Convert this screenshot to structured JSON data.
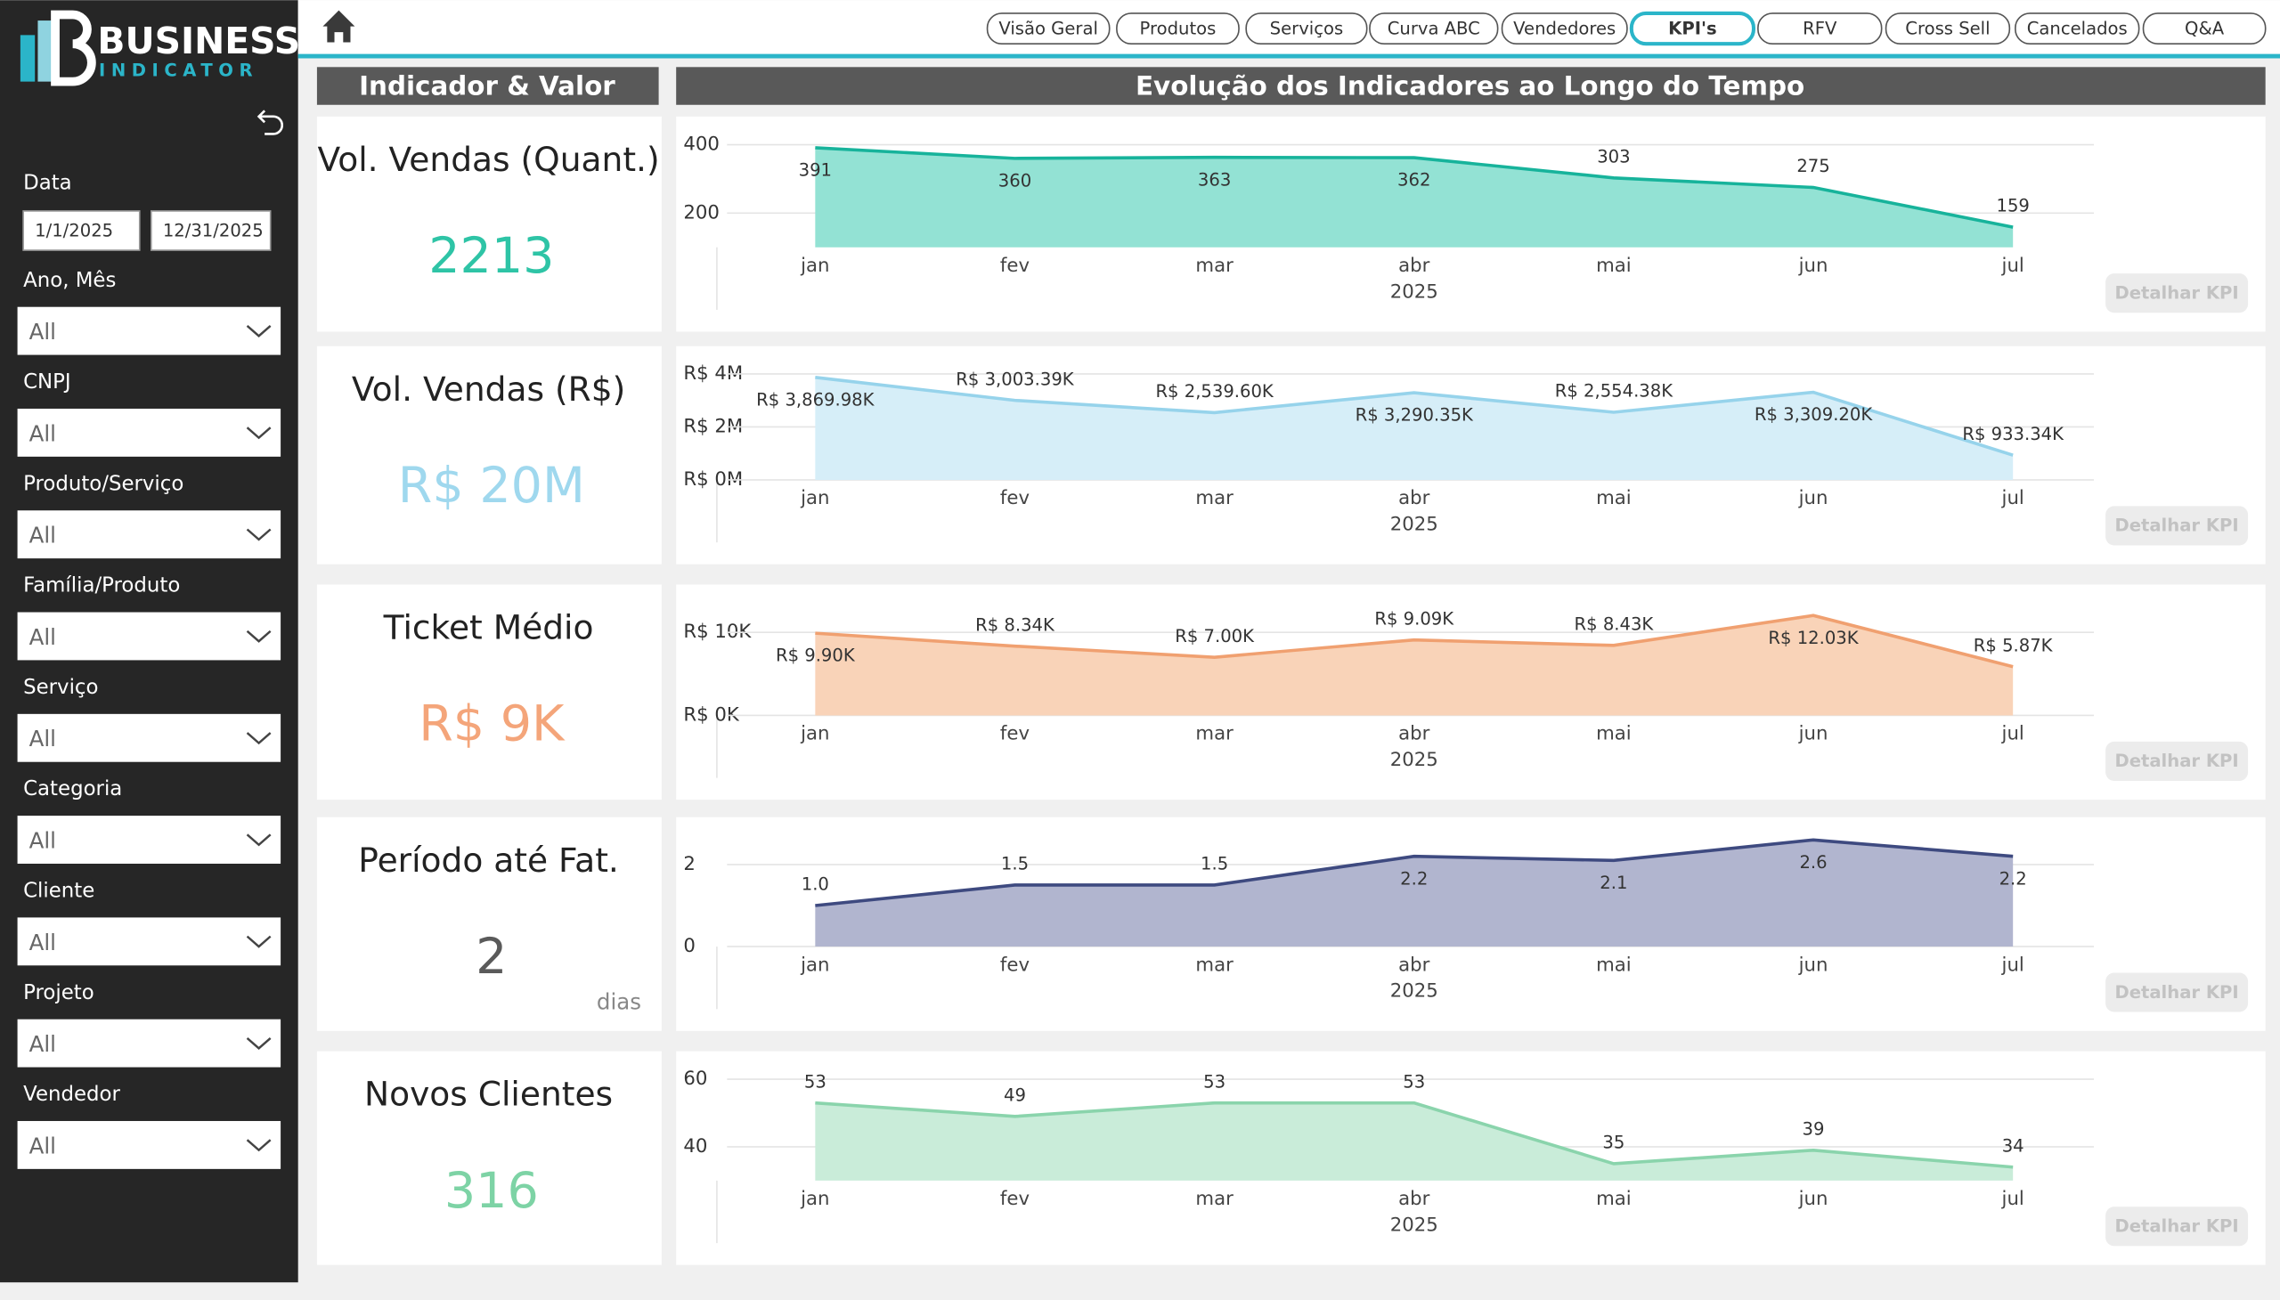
{
  "brand": {
    "name": "BUSINESS",
    "tagline": "INDICATOR"
  },
  "nav": {
    "items": [
      "Visão Geral",
      "Produtos",
      "Serviços",
      "Curva ABC",
      "Vendedores",
      "KPI's",
      "RFV",
      "Cross Sell",
      "Cancelados",
      "Q&A"
    ],
    "active": 5
  },
  "filters": {
    "date": {
      "label": "Data",
      "start": "1/1/2025",
      "end": "12/31/2025"
    },
    "dropdowns": [
      {
        "label": "Ano, Mês",
        "value": "All"
      },
      {
        "label": "CNPJ",
        "value": "All"
      },
      {
        "label": "Produto/Serviço",
        "value": "All"
      },
      {
        "label": "Família/Produto",
        "value": "All"
      },
      {
        "label": "Serviço",
        "value": "All"
      },
      {
        "label": "Categoria",
        "value": "All"
      },
      {
        "label": "Cliente",
        "value": "All"
      },
      {
        "label": "Projeto",
        "value": "All"
      },
      {
        "label": "Vendedor",
        "value": "All"
      }
    ]
  },
  "headers": {
    "kpi": "Indicador & Valor",
    "trend": "Evolução dos Indicadores ao Longo do Tempo"
  },
  "kpis": [
    {
      "title": "Vol. Vendas (Quant.)",
      "value": "2213",
      "color": "#2ec4a6"
    },
    {
      "title": "Vol. Vendas (R$)",
      "value": "R$ 20M",
      "color": "#9fd8ee"
    },
    {
      "title": "Ticket Médio",
      "value": "R$ 9K",
      "color": "#f4a57a"
    },
    {
      "title": "Período até Fat.",
      "value": "2",
      "unit": "dias",
      "color": "#5a5a5a"
    },
    {
      "title": "Novos Clientes",
      "value": "316",
      "color": "#7dd3a5"
    }
  ],
  "chart_data": [
    {
      "type": "area",
      "categories": [
        "jan",
        "fev",
        "mar",
        "abr",
        "mai",
        "jun",
        "jul"
      ],
      "x_title": "2025",
      "values": [
        391,
        360,
        363,
        362,
        303,
        275,
        159
      ],
      "color": "#17b39b",
      "fill": "#93e2d4",
      "ylim": [
        100,
        440
      ],
      "yticks": [
        200,
        400
      ],
      "grid": true,
      "button": "Detalhar KPI"
    },
    {
      "type": "area",
      "categories": [
        "jan",
        "fev",
        "mar",
        "abr",
        "mai",
        "jun",
        "jul"
      ],
      "x_title": "2025",
      "values": [
        3869980,
        3003390,
        2539600,
        3290350,
        2554380,
        3309200,
        933340
      ],
      "value_labels": [
        "R$ 3,869.98K",
        "R$ 3,003.39K",
        "R$ 2,539.60K",
        "R$ 3,290.35K",
        "R$ 2,554.38K",
        "R$ 3,309.20K",
        "R$ 933.34K"
      ],
      "color": "#96d3eb",
      "fill": "#d6eef8",
      "ylim": [
        0,
        4500000
      ],
      "yticks": [
        {
          "value": 0,
          "label": "R$ 0M"
        },
        {
          "value": 2000000,
          "label": "R$ 2M"
        },
        {
          "value": 4000000,
          "label": "R$ 4M"
        }
      ],
      "grid": true,
      "button": "Detalhar KPI"
    },
    {
      "type": "area",
      "categories": [
        "jan",
        "fev",
        "mar",
        "abr",
        "mai",
        "jun",
        "jul"
      ],
      "x_title": "2025",
      "values": [
        9900,
        8340,
        7000,
        9090,
        8430,
        12030,
        5870
      ],
      "value_labels": [
        "R$ 9.90K",
        "R$ 8.34K",
        "R$ 7.00K",
        "R$ 9.09K",
        "R$ 8.43K",
        "R$ 12.03K",
        "R$ 5.87K"
      ],
      "color": "#f0a070",
      "fill": "#f9d3b8",
      "ylim": [
        0,
        14000
      ],
      "yticks": [
        {
          "value": 0,
          "label": "R$ 0K"
        },
        {
          "value": 10000,
          "label": "R$ 10K"
        }
      ],
      "grid": true,
      "button": "Detalhar KPI"
    },
    {
      "type": "area",
      "categories": [
        "jan",
        "fev",
        "mar",
        "abr",
        "mai",
        "jun",
        "jul"
      ],
      "x_title": "2025",
      "values": [
        1.0,
        1.5,
        1.5,
        2.2,
        2.1,
        2.6,
        2.2
      ],
      "value_labels": [
        "1.0",
        "1.5",
        "1.5",
        "2.2",
        "2.1",
        "2.6",
        "2.2"
      ],
      "color": "#3e4a80",
      "fill": "#b1b5cf",
      "ylim": [
        0,
        2.8
      ],
      "yticks": [
        0,
        2
      ],
      "grid": true,
      "button": "Detalhar KPI"
    },
    {
      "type": "area",
      "categories": [
        "jan",
        "fev",
        "mar",
        "abr",
        "mai",
        "jun",
        "jul"
      ],
      "x_title": "2025",
      "values": [
        53,
        49,
        53,
        53,
        35,
        39,
        34
      ],
      "color": "#8ad4ac",
      "fill": "#c9ecd9",
      "ylim": [
        30,
        64
      ],
      "yticks": [
        40,
        60
      ],
      "grid": true,
      "button": "Detalhar KPI"
    }
  ]
}
